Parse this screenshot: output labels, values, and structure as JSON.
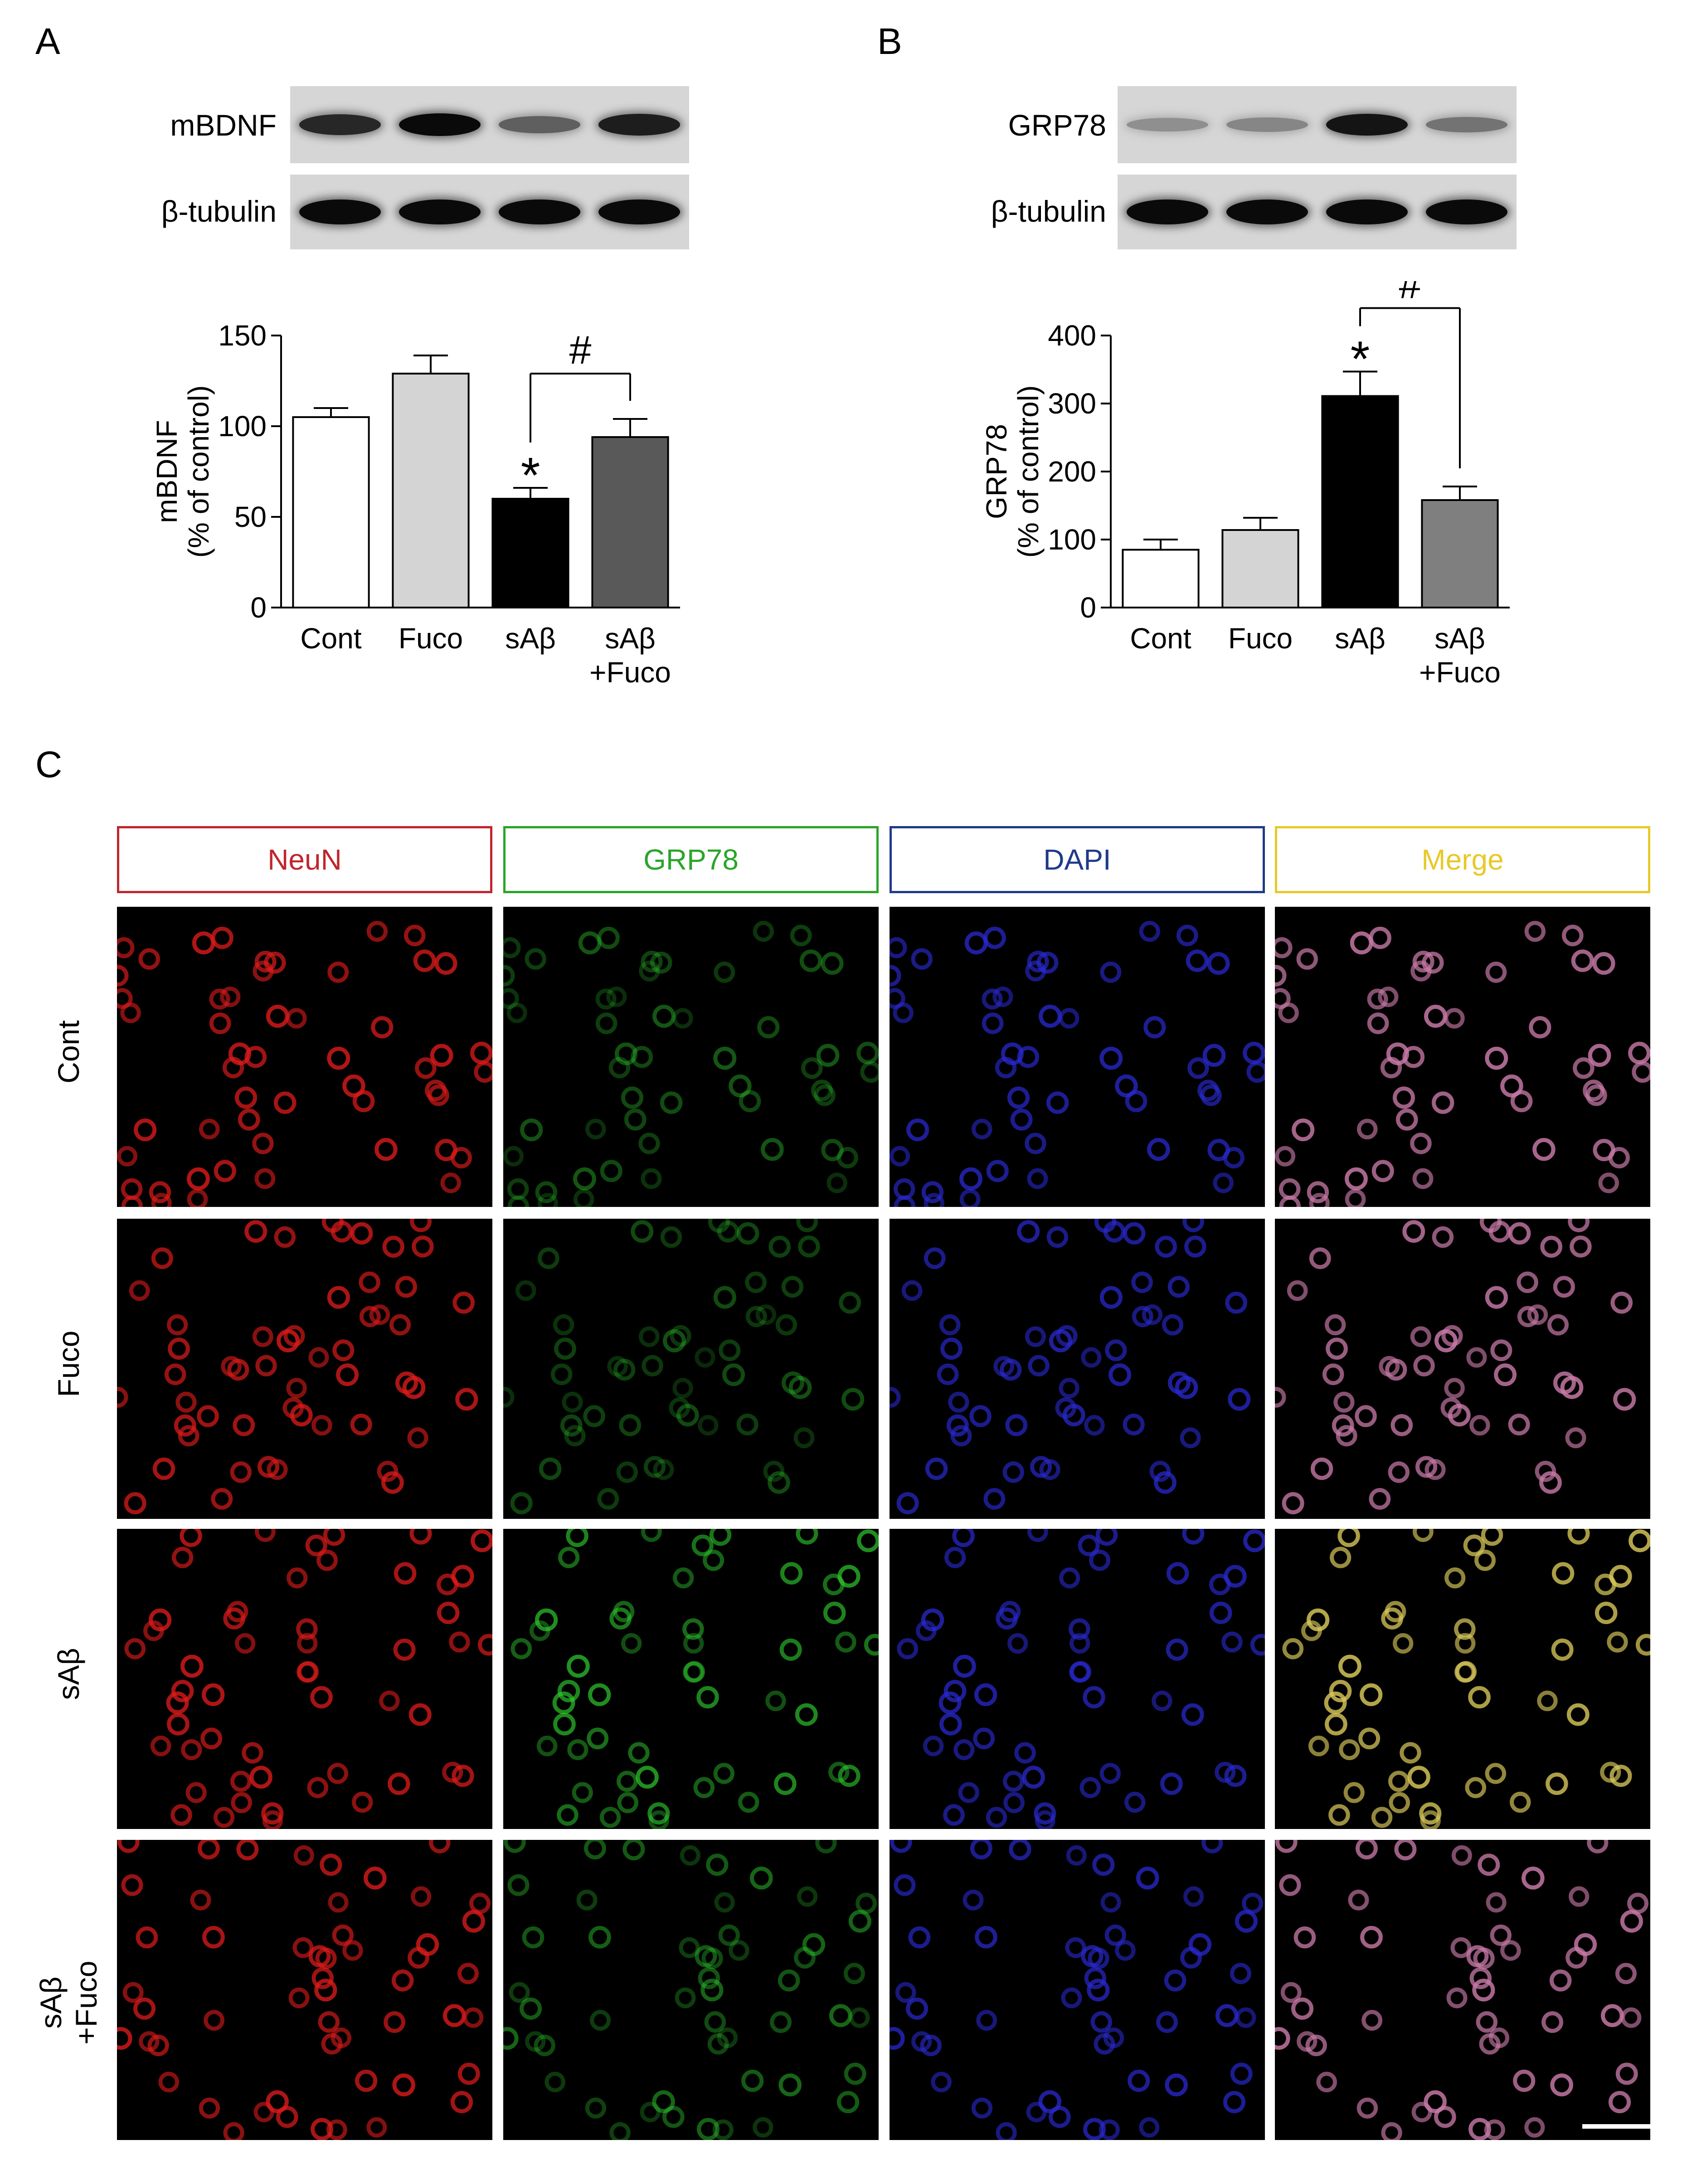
{
  "panels": {
    "a": "A",
    "b": "B",
    "c": "C"
  },
  "blots": {
    "a": {
      "target": "mBDNF",
      "loading": "β-tubulin",
      "target_intensity": [
        0.85,
        1.0,
        0.55,
        0.9
      ],
      "loading_intensity": [
        1,
        1,
        1,
        1
      ]
    },
    "b": {
      "target": "GRP78",
      "loading": "β-tubulin",
      "target_intensity": [
        0.3,
        0.35,
        0.95,
        0.45
      ],
      "loading_intensity": [
        1,
        1,
        1,
        1
      ]
    }
  },
  "chart_data": [
    {
      "type": "bar",
      "categories": [
        "Cont",
        "Fuco",
        "sAβ",
        "sAβ\n+Fuco"
      ],
      "values": [
        105,
        129,
        60,
        94
      ],
      "errors": [
        5,
        10,
        6,
        10
      ],
      "colors": [
        "#ffffff",
        "#d4d4d4",
        "#000000",
        "#595959"
      ],
      "ylabel_line1": "mBDNF",
      "ylabel_line2": "(% of control)",
      "ylim": [
        0,
        150
      ],
      "yticks": [
        0,
        50,
        100,
        150
      ],
      "significance": {
        "star": {
          "index": 2,
          "label": "*"
        },
        "hash": {
          "from": 2,
          "to": 3,
          "label": "#"
        }
      }
    },
    {
      "type": "bar",
      "categories": [
        "Cont",
        "Fuco",
        "sAβ",
        "sAβ\n+Fuco"
      ],
      "values": [
        85,
        114,
        311,
        158
      ],
      "errors": [
        15,
        18,
        36,
        20
      ],
      "colors": [
        "#ffffff",
        "#d4d4d4",
        "#000000",
        "#7f7f7f"
      ],
      "ylabel_line1": "GRP78",
      "ylabel_line2": "(% of control)",
      "ylim": [
        0,
        400
      ],
      "yticks": [
        0,
        100,
        200,
        300,
        400
      ],
      "significance": {
        "star": {
          "index": 2,
          "label": "*"
        },
        "hash": {
          "from": 2,
          "to": 3,
          "label": "#"
        }
      }
    }
  ],
  "panel_c": {
    "headers": [
      {
        "label": "NeuN",
        "color": "#c0262d"
      },
      {
        "label": "GRP78",
        "color": "#2aa52a"
      },
      {
        "label": "DAPI",
        "color": "#1f3a8a"
      },
      {
        "label": "Merge",
        "color": "#e8c92a"
      }
    ],
    "rows": [
      {
        "label": "Cont",
        "grp_intensity": 0.45
      },
      {
        "label": "Fuco",
        "grp_intensity": 0.4
      },
      {
        "label": "sAβ",
        "grp_intensity": 0.95
      },
      {
        "label": "sAβ\n+Fuco",
        "grp_intensity": 0.6
      }
    ]
  }
}
